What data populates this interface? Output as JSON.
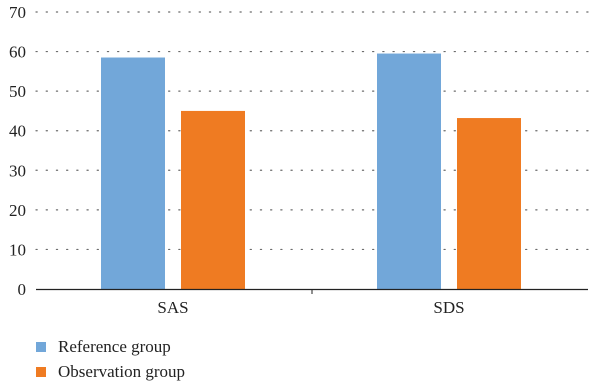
{
  "chart_data": {
    "type": "bar",
    "categories": [
      "SAS",
      "SDS"
    ],
    "series": [
      {
        "name": "Reference group",
        "values": [
          58.5,
          59.5
        ],
        "color": "#72A7D9"
      },
      {
        "name": "Observation group",
        "values": [
          45.0,
          43.2
        ],
        "color": "#EF7B22"
      }
    ],
    "title": "",
    "xlabel": "",
    "ylabel": "",
    "ylim": [
      0,
      70
    ],
    "yticks": [
      0,
      10,
      20,
      30,
      40,
      50,
      60,
      70
    ],
    "grid": true,
    "grid_style": "dotted",
    "legend_placement": "bottom-left"
  }
}
